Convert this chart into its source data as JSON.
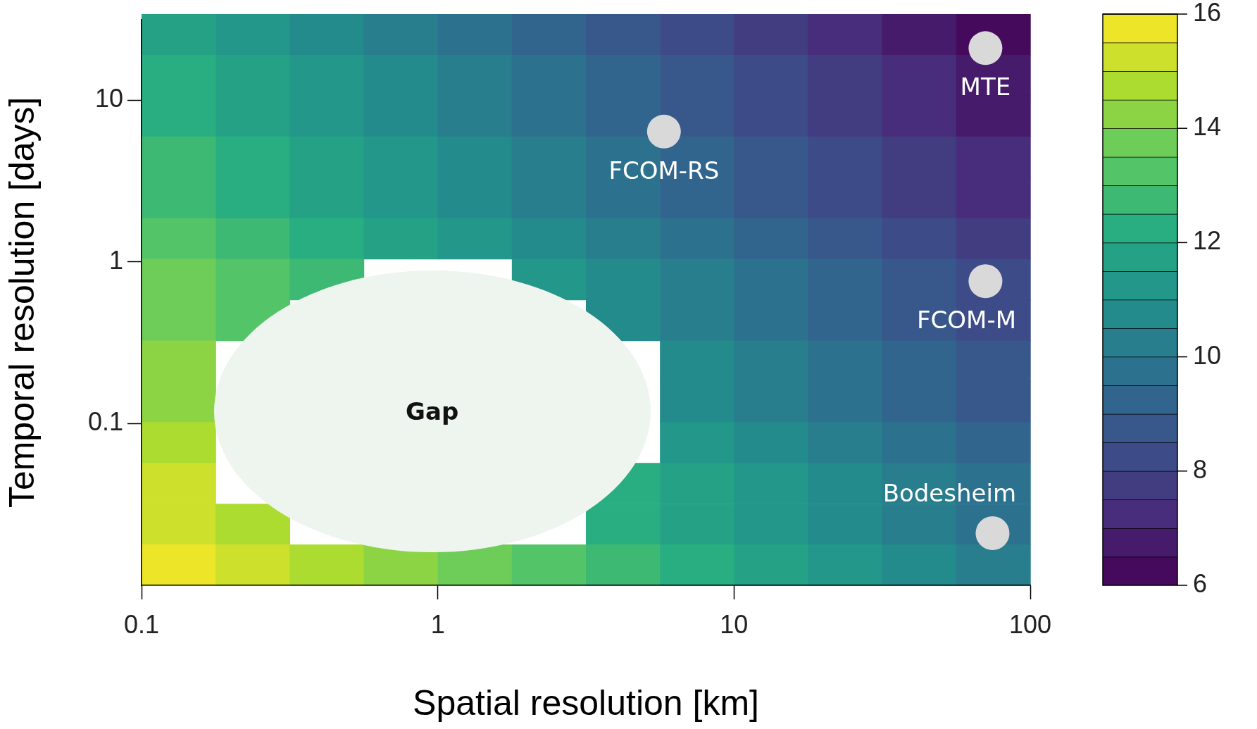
{
  "chart_data": [
    {
      "type": "heatmap",
      "categories": [
        null,
        null,
        null,
        null,
        null,
        null,
        null,
        null,
        null,
        null,
        null,
        null
      ],
      "y_categories": [
        null,
        null,
        null,
        null,
        null,
        null,
        null,
        null,
        null,
        null,
        null,
        null,
        null,
        null
      ],
      "cells": [
        [
          11.7,
          11.2,
          10.7,
          10.2,
          9.7,
          9.2,
          8.7,
          8.2,
          7.7,
          7.2,
          6.7,
          6.2
        ],
        [
          12.0,
          11.5,
          11.0,
          10.5,
          10.0,
          9.5,
          9.0,
          8.5,
          8.0,
          7.5,
          7.0,
          6.5
        ],
        [
          12.3,
          11.8,
          11.3,
          10.8,
          10.3,
          9.8,
          9.3,
          8.8,
          8.3,
          7.8,
          7.3,
          6.8
        ],
        [
          12.6,
          12.1,
          11.6,
          11.1,
          10.6,
          10.1,
          9.6,
          9.1,
          8.6,
          8.1,
          7.6,
          7.1
        ],
        [
          12.9,
          12.4,
          11.9,
          11.4,
          10.9,
          10.4,
          9.9,
          9.4,
          8.9,
          8.4,
          7.9,
          7.4
        ],
        [
          13.2,
          12.7,
          12.2,
          11.7,
          11.2,
          10.7,
          10.2,
          9.7,
          9.2,
          8.7,
          8.2,
          7.7
        ],
        [
          13.5,
          13.0,
          12.5,
          null,
          null,
          11.0,
          10.5,
          10.0,
          9.5,
          9.0,
          8.5,
          8.0
        ],
        [
          13.8,
          13.3,
          null,
          null,
          null,
          null,
          10.8,
          10.3,
          9.8,
          9.3,
          8.8,
          8.3
        ],
        [
          14.1,
          null,
          null,
          null,
          null,
          null,
          null,
          10.6,
          10.1,
          9.6,
          9.1,
          8.6
        ],
        [
          14.4,
          null,
          null,
          null,
          null,
          null,
          null,
          10.9,
          10.4,
          9.9,
          9.4,
          8.9
        ],
        [
          14.7,
          null,
          null,
          null,
          null,
          null,
          null,
          11.2,
          10.7,
          10.2,
          9.7,
          9.2
        ],
        [
          15.0,
          null,
          null,
          null,
          null,
          null,
          12.0,
          11.5,
          11.0,
          10.5,
          10.0,
          9.5
        ],
        [
          15.3,
          14.8,
          null,
          null,
          null,
          null,
          12.3,
          11.8,
          11.3,
          10.8,
          10.3,
          9.8
        ],
        [
          15.6,
          15.1,
          14.6,
          14.1,
          13.6,
          13.1,
          12.6,
          12.1,
          11.6,
          11.1,
          10.6,
          10.1
        ]
      ],
      "clim": [
        6,
        16
      ],
      "cticks": [
        6,
        8,
        10,
        12,
        14,
        16
      ]
    },
    {
      "type": "scatter",
      "xlabel": "Spatial resolution [km]",
      "ylabel": "Temporal resolution [days]",
      "log": "xy",
      "xlim": [
        0.1,
        100
      ],
      "xticks": [
        0.1,
        1,
        10,
        100
      ],
      "ylim": [
        0.01,
        31.6
      ],
      "yticks": [
        0.1,
        1,
        10
      ],
      "marker": "circle",
      "series": [
        {
          "name": "MTE",
          "color": "#d9d9d9",
          "x": [
            70.6
          ],
          "values": [
            21
          ]
        },
        {
          "name": "FCOM-RS",
          "color": "#d9d9d9",
          "x": [
            5.8
          ],
          "values": [
            6.4
          ]
        },
        {
          "name": "FCOM-M",
          "color": "#d9d9d9",
          "x": [
            70.6
          ],
          "values": [
            0.76
          ]
        },
        {
          "name": "Bodesheim",
          "color": "#d9d9d9",
          "x": [
            74.6
          ],
          "values": [
            0.021
          ]
        }
      ],
      "annotations": [
        "Gap"
      ]
    }
  ]
}
